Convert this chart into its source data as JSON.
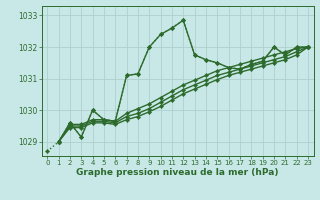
{
  "background_color": "#c8e8e8",
  "grid_color": "#b0d0d0",
  "line_color": "#2d6b2d",
  "xlabel": "Graphe pression niveau de la mer (hPa)",
  "ylim": [
    1028.55,
    1033.3
  ],
  "xlim": [
    -0.5,
    23.5
  ],
  "yticks": [
    1029,
    1030,
    1031,
    1032,
    1033
  ],
  "xticks": [
    0,
    1,
    2,
    3,
    4,
    5,
    6,
    7,
    8,
    9,
    10,
    11,
    12,
    13,
    14,
    15,
    16,
    17,
    18,
    19,
    20,
    21,
    22,
    23
  ],
  "series": [
    {
      "x": [
        0,
        1,
        2,
        3,
        4,
        5,
        6,
        7,
        8,
        9,
        10,
        11,
        12,
        13,
        14,
        15,
        16,
        17,
        18,
        19,
        20,
        21,
        22,
        23
      ],
      "y": [
        1028.7,
        1029.0,
        1029.6,
        1029.15,
        1030.0,
        1029.7,
        1029.65,
        1031.1,
        1031.15,
        1032.0,
        1032.4,
        1032.6,
        1032.85,
        1031.75,
        1031.6,
        1031.5,
        1031.35,
        1031.3,
        1031.45,
        1031.55,
        1032.0,
        1031.75,
        1032.0,
        1032.0
      ],
      "style": "dotted",
      "lw": 1.0
    },
    {
      "x": [
        1,
        2,
        3,
        4,
        5,
        6,
        7,
        8,
        9,
        10,
        11,
        12,
        13,
        14,
        15,
        16,
        17,
        18,
        19,
        20,
        21,
        22,
        23
      ],
      "y": [
        1029.0,
        1029.6,
        1029.15,
        1030.0,
        1029.7,
        1029.65,
        1031.1,
        1031.15,
        1032.0,
        1032.4,
        1032.6,
        1032.85,
        1031.75,
        1031.6,
        1031.5,
        1031.35,
        1031.3,
        1031.45,
        1031.55,
        1032.0,
        1031.75,
        1032.0,
        1032.0
      ],
      "style": "solid",
      "lw": 1.0
    },
    {
      "x": [
        1,
        2,
        3,
        4,
        5,
        6,
        7,
        8,
        9,
        10,
        11,
        12,
        13,
        14,
        15,
        16,
        17,
        18,
        19,
        20,
        21,
        22,
        23
      ],
      "y": [
        1029.0,
        1029.55,
        1029.55,
        1029.7,
        1029.7,
        1029.65,
        1029.9,
        1030.05,
        1030.2,
        1030.4,
        1030.6,
        1030.8,
        1030.95,
        1031.1,
        1031.25,
        1031.35,
        1031.45,
        1031.55,
        1031.65,
        1031.75,
        1031.85,
        1031.95,
        1032.0
      ],
      "style": "solid",
      "lw": 1.0
    },
    {
      "x": [
        1,
        2,
        3,
        4,
        5,
        6,
        7,
        8,
        9,
        10,
        11,
        12,
        13,
        14,
        15,
        16,
        17,
        18,
        19,
        20,
        21,
        22,
        23
      ],
      "y": [
        1029.0,
        1029.5,
        1029.5,
        1029.65,
        1029.65,
        1029.6,
        1029.8,
        1029.9,
        1030.05,
        1030.25,
        1030.45,
        1030.65,
        1030.8,
        1030.95,
        1031.1,
        1031.2,
        1031.3,
        1031.4,
        1031.5,
        1031.6,
        1031.7,
        1031.85,
        1032.0
      ],
      "style": "solid",
      "lw": 1.0
    },
    {
      "x": [
        1,
        2,
        3,
        4,
        5,
        6,
        7,
        8,
        9,
        10,
        11,
        12,
        13,
        14,
        15,
        16,
        17,
        18,
        19,
        20,
        21,
        22,
        23
      ],
      "y": [
        1029.0,
        1029.45,
        1029.45,
        1029.6,
        1029.6,
        1029.55,
        1029.7,
        1029.8,
        1029.95,
        1030.12,
        1030.32,
        1030.52,
        1030.67,
        1030.82,
        1030.97,
        1031.1,
        1031.2,
        1031.3,
        1031.4,
        1031.5,
        1031.6,
        1031.75,
        1032.0
      ],
      "style": "solid",
      "lw": 1.0
    }
  ]
}
